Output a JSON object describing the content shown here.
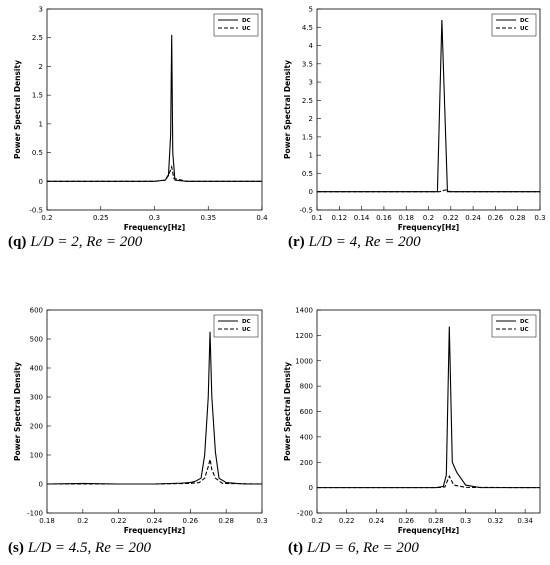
{
  "chart_data": [
    {
      "type": "line",
      "caption": {
        "label": "(q)",
        "text": "L/D = 2, Re = 200"
      },
      "x_label": "Frequency[Hz]",
      "y_label": "Power Spectral Density",
      "xlim": [
        0.2,
        0.4
      ],
      "xticks": [
        0.2,
        0.25,
        0.3,
        0.35,
        0.4
      ],
      "ylim": [
        -0.5,
        3
      ],
      "yticks": [
        -0.5,
        0,
        0.5,
        1,
        1.5,
        2,
        2.5,
        3
      ],
      "legend": "upper right",
      "series": [
        {
          "name": "DC",
          "color": "#000000",
          "line_style": "solid",
          "x": [
            0.2,
            0.3,
            0.31,
            0.313,
            0.315,
            0.316,
            0.317,
            0.319,
            0.33,
            0.4
          ],
          "values": [
            0,
            0,
            0.02,
            0.1,
            0.8,
            2.55,
            0.5,
            0.02,
            0,
            0
          ]
        },
        {
          "name": "UC",
          "color": "#000000",
          "line_style": "dashed",
          "x": [
            0.2,
            0.3,
            0.31,
            0.314,
            0.316,
            0.318,
            0.33,
            0.4
          ],
          "values": [
            0,
            0,
            0.02,
            0.15,
            0.25,
            0.05,
            0,
            0
          ]
        }
      ]
    },
    {
      "type": "line",
      "caption": {
        "label": "(r)",
        "text": "L/D = 4, Re = 200"
      },
      "x_label": "Frequency[Hz]",
      "y_label": "Power Spectral Density",
      "xlim": [
        0.1,
        0.3
      ],
      "xticks": [
        0.1,
        0.12,
        0.14,
        0.16,
        0.18,
        0.2,
        0.22,
        0.24,
        0.26,
        0.28,
        0.3
      ],
      "ylim": [
        -0.5,
        5
      ],
      "yticks": [
        -0.5,
        0,
        0.5,
        1,
        1.5,
        2,
        2.5,
        3,
        3.5,
        4,
        4.5,
        5
      ],
      "legend": "upper right",
      "series": [
        {
          "name": "DC",
          "color": "#000000",
          "line_style": "solid",
          "x": [
            0.1,
            0.2,
            0.208,
            0.212,
            0.217,
            0.22,
            0.3
          ],
          "values": [
            0,
            0,
            0,
            4.7,
            0,
            0,
            0
          ]
        },
        {
          "name": "UC",
          "color": "#000000",
          "line_style": "dashed",
          "x": [
            0.1,
            0.2,
            0.21,
            0.215,
            0.22,
            0.3
          ],
          "values": [
            0,
            0,
            0,
            0.05,
            0,
            0
          ]
        }
      ]
    },
    {
      "type": "line",
      "caption": {
        "label": "(s)",
        "text": "L/D = 4.5, Re = 200"
      },
      "x_label": "Frequency[Hz]",
      "y_label": "Power Spectral Density",
      "xlim": [
        0.18,
        0.3
      ],
      "xticks": [
        0.18,
        0.2,
        0.22,
        0.24,
        0.26,
        0.28,
        0.3
      ],
      "ylim": [
        -100,
        600
      ],
      "yticks": [
        -100,
        0,
        100,
        200,
        300,
        400,
        500,
        600
      ],
      "legend": "upper right",
      "series": [
        {
          "name": "DC",
          "color": "#000000",
          "line_style": "solid",
          "x": [
            0.18,
            0.2,
            0.22,
            0.24,
            0.255,
            0.26,
            0.263,
            0.266,
            0.268,
            0.27,
            0.271,
            0.272,
            0.274,
            0.276,
            0.28,
            0.29,
            0.3
          ],
          "values": [
            0,
            2,
            0,
            0,
            3,
            5,
            10,
            20,
            100,
            300,
            525,
            300,
            110,
            20,
            5,
            0,
            0
          ]
        },
        {
          "name": "UC",
          "color": "#000000",
          "line_style": "dashed",
          "x": [
            0.18,
            0.24,
            0.26,
            0.265,
            0.268,
            0.27,
            0.271,
            0.272,
            0.274,
            0.278,
            0.3
          ],
          "values": [
            0,
            0,
            2,
            5,
            20,
            60,
            85,
            50,
            20,
            2,
            0
          ]
        }
      ]
    },
    {
      "type": "line",
      "caption": {
        "label": "(t)",
        "text": "L/D = 6, Re = 200"
      },
      "x_label": "Frequency[Hz]",
      "y_label": "Power Spectral Density",
      "xlim": [
        0.2,
        0.35
      ],
      "xticks": [
        0.2,
        0.22,
        0.24,
        0.26,
        0.28,
        0.3,
        0.32,
        0.34
      ],
      "ylim": [
        -200,
        1400
      ],
      "yticks": [
        -200,
        0,
        200,
        400,
        600,
        800,
        1000,
        1200,
        1400
      ],
      "legend": "upper right",
      "series": [
        {
          "name": "DC",
          "color": "#000000",
          "line_style": "solid",
          "x": [
            0.2,
            0.28,
            0.285,
            0.287,
            0.289,
            0.291,
            0.294,
            0.3,
            0.31,
            0.35
          ],
          "values": [
            0,
            0,
            10,
            100,
            1270,
            200,
            120,
            20,
            0,
            0
          ]
        },
        {
          "name": "UC",
          "color": "#000000",
          "line_style": "dashed",
          "x": [
            0.2,
            0.28,
            0.286,
            0.289,
            0.292,
            0.3,
            0.35
          ],
          "values": [
            0,
            0,
            5,
            90,
            20,
            2,
            0
          ]
        }
      ]
    }
  ]
}
